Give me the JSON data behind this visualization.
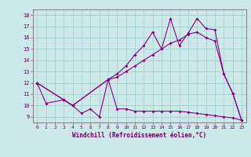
{
  "title": "",
  "xlabel": "Windchill (Refroidissement éolien,°C)",
  "bg_color": "#cce8e8",
  "line_color": "#880088",
  "grid_color": "#aad4d4",
  "x_ticks": [
    0,
    1,
    2,
    3,
    4,
    5,
    6,
    7,
    8,
    9,
    10,
    11,
    12,
    13,
    14,
    15,
    16,
    17,
    18,
    19,
    20,
    21,
    22,
    23
  ],
  "y_ticks": [
    9,
    10,
    11,
    12,
    13,
    14,
    15,
    16,
    17,
    18
  ],
  "xlim": [
    -0.5,
    23.5
  ],
  "ylim": [
    8.5,
    18.5
  ],
  "series": [
    {
      "x": [
        0,
        1,
        3,
        4,
        5,
        6,
        7,
        8,
        9,
        10,
        11,
        12,
        13,
        14,
        15,
        16,
        17,
        18,
        19,
        20,
        21,
        22,
        23
      ],
      "y": [
        12,
        10.2,
        10.5,
        10.0,
        9.3,
        9.7,
        9.0,
        12.3,
        9.7,
        9.7,
        9.5,
        9.5,
        9.5,
        9.5,
        9.5,
        9.5,
        9.4,
        9.3,
        9.2,
        9.1,
        9.0,
        8.9,
        8.7
      ]
    },
    {
      "x": [
        0,
        3,
        4,
        8,
        9,
        10,
        11,
        12,
        13,
        14,
        15,
        16,
        17,
        18,
        19,
        20,
        21,
        22,
        23
      ],
      "y": [
        12,
        10.5,
        10.0,
        12.3,
        12.5,
        13.0,
        13.5,
        14.0,
        14.5,
        15.0,
        15.5,
        15.8,
        16.3,
        16.5,
        16.0,
        15.7,
        12.8,
        11.1,
        8.7
      ]
    },
    {
      "x": [
        0,
        3,
        4,
        8,
        9,
        10,
        11,
        12,
        13,
        14,
        15,
        16,
        17,
        18,
        19,
        20,
        21,
        22,
        23
      ],
      "y": [
        12,
        10.5,
        10.0,
        12.3,
        12.8,
        13.5,
        14.5,
        15.3,
        16.5,
        15.0,
        17.7,
        15.3,
        16.4,
        17.7,
        16.8,
        16.7,
        12.8,
        11.1,
        8.7
      ]
    }
  ]
}
